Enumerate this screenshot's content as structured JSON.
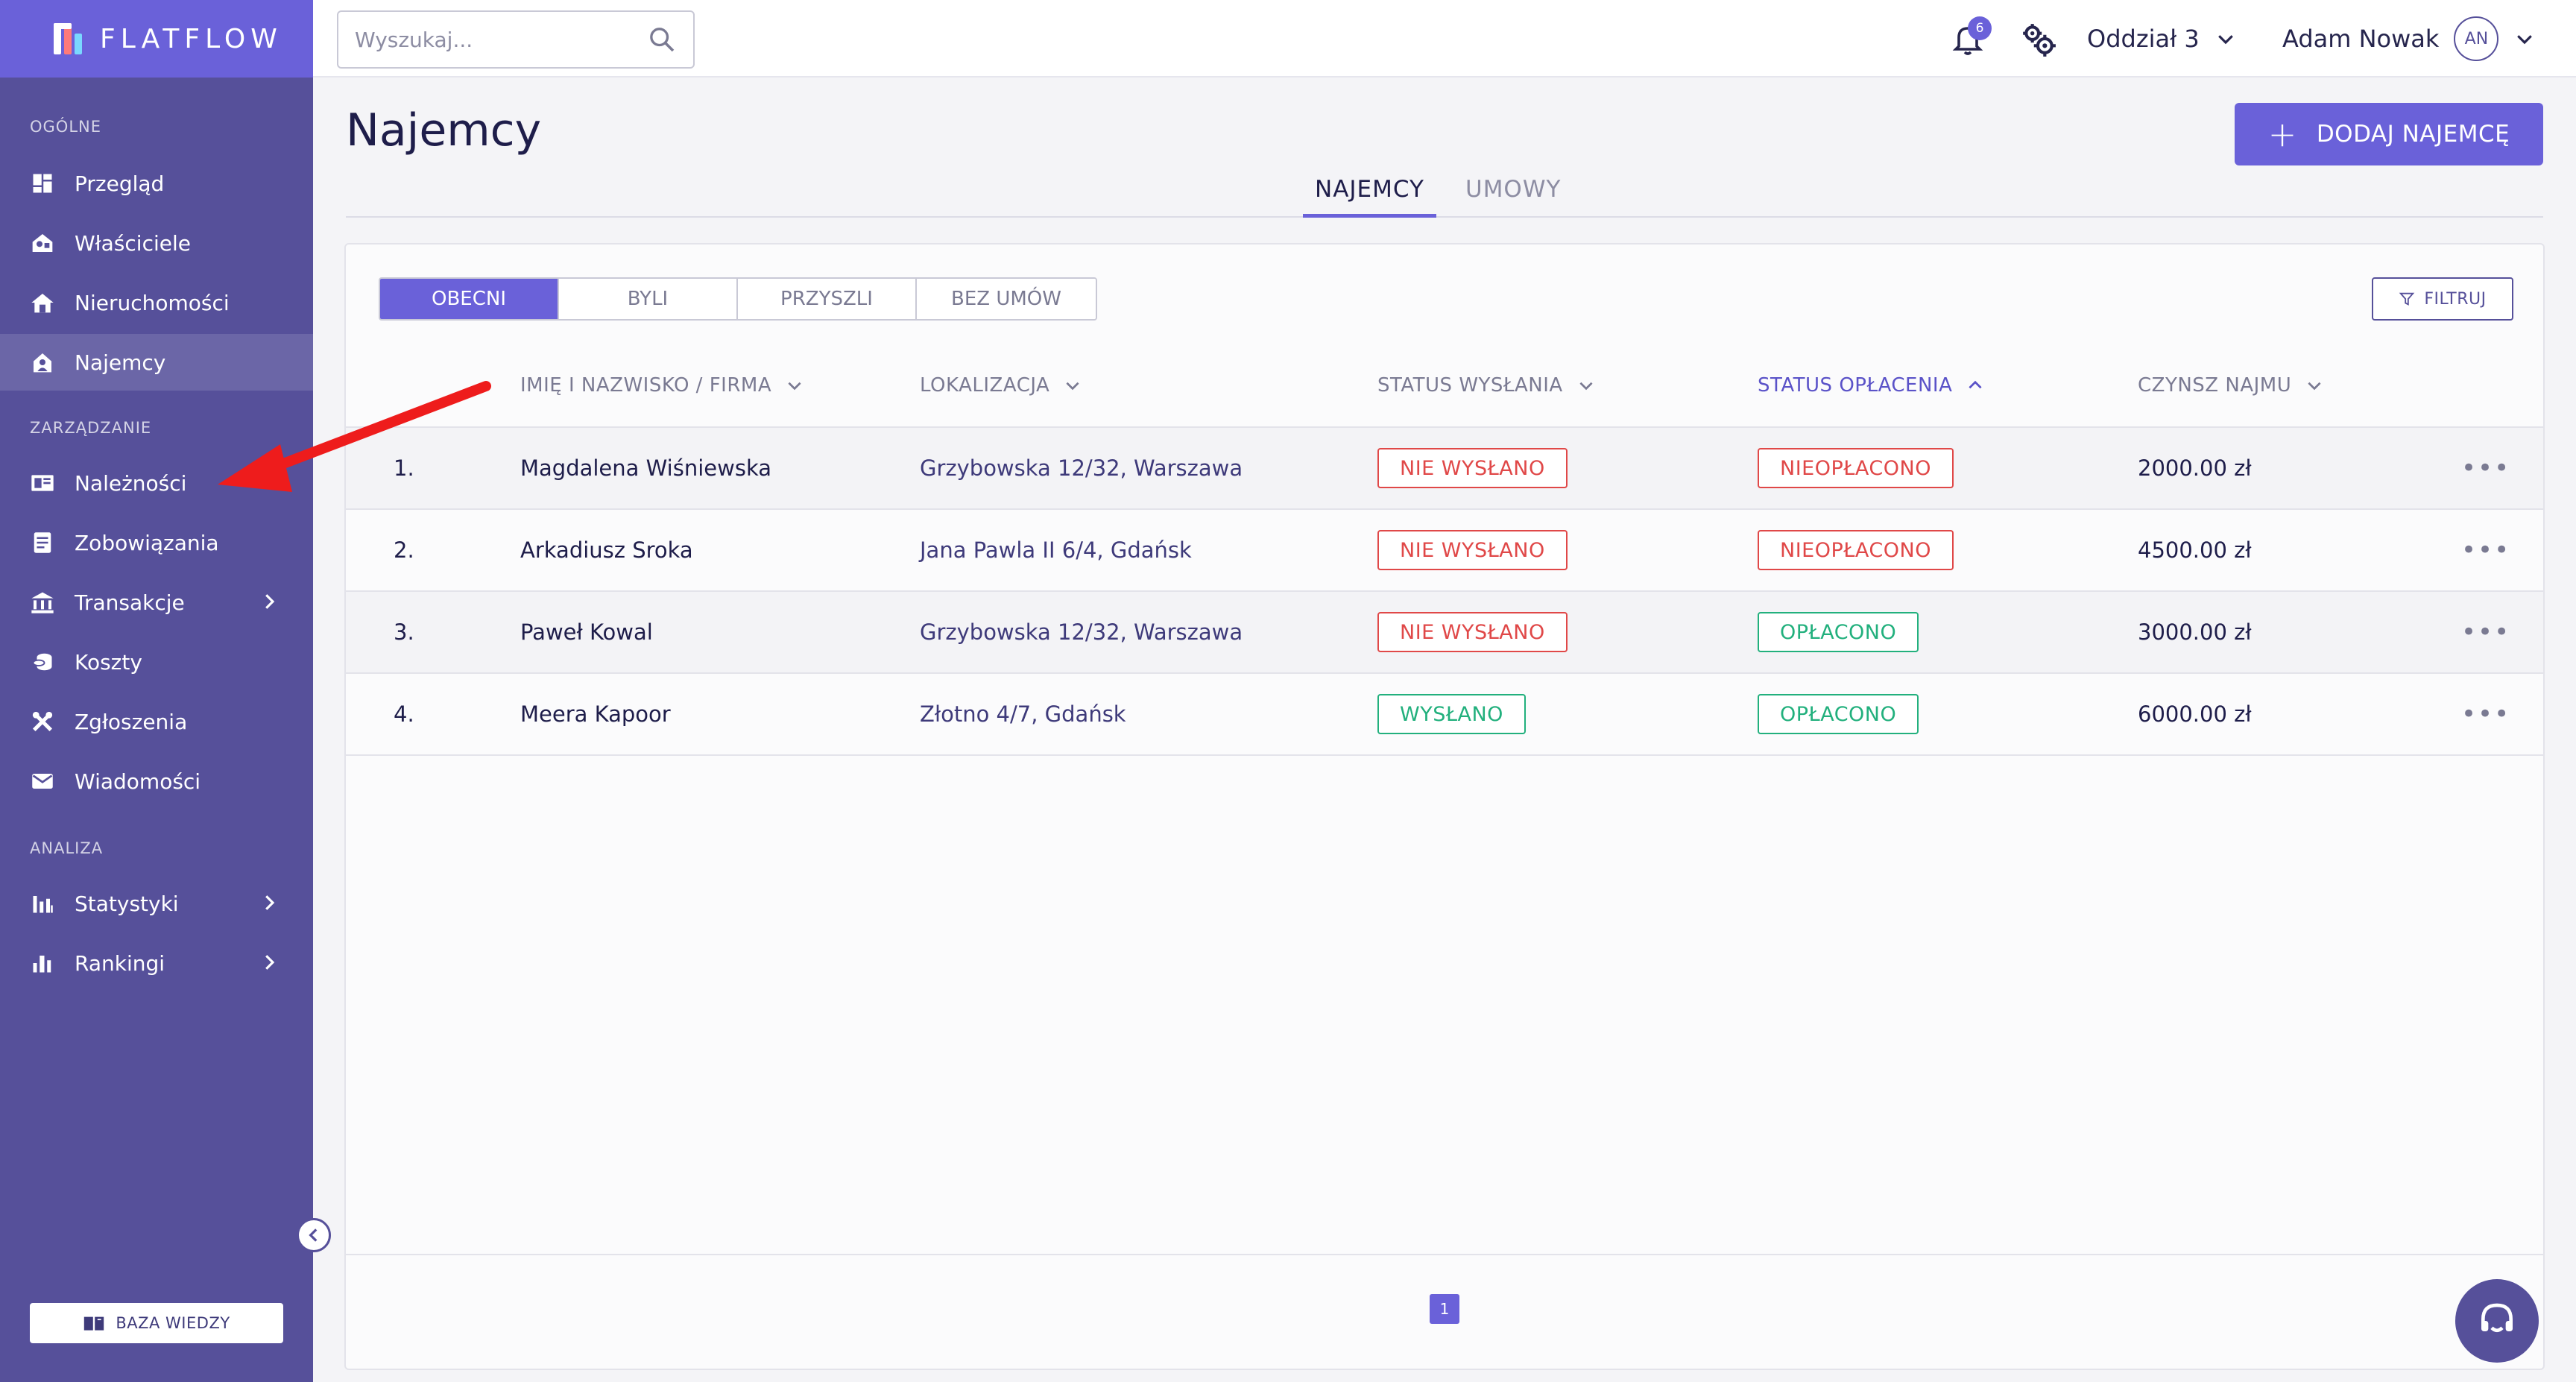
{
  "app": {
    "name": "FLATFLOW"
  },
  "sidebar": {
    "sections": [
      {
        "label": "OGÓLNE"
      },
      {
        "label": "ZARZĄDZANIE"
      },
      {
        "label": "ANALIZA"
      }
    ],
    "items": [
      {
        "label": "Przegląd",
        "icon": "dashboard-icon"
      },
      {
        "label": "Właściciele",
        "icon": "owners-icon"
      },
      {
        "label": "Nieruchomości",
        "icon": "property-icon"
      },
      {
        "label": "Najemcy",
        "icon": "tenant-icon",
        "active": true
      },
      {
        "label": "Należności",
        "icon": "receivables-icon"
      },
      {
        "label": "Zobowiązania",
        "icon": "liabilities-icon"
      },
      {
        "label": "Transakcje",
        "icon": "bank-icon",
        "expandable": true
      },
      {
        "label": "Koszty",
        "icon": "coins-icon"
      },
      {
        "label": "Zgłoszenia",
        "icon": "tools-icon"
      },
      {
        "label": "Wiadomości",
        "icon": "mail-icon"
      },
      {
        "label": "Statystyki",
        "icon": "stats-icon",
        "expandable": true
      },
      {
        "label": "Rankingi",
        "icon": "ranking-icon",
        "expandable": true
      }
    ],
    "knowledge_base": "BAZA WIEDZY"
  },
  "topbar": {
    "search_placeholder": "Wyszukaj...",
    "notifications_count": "6",
    "branch": "Oddział 3",
    "user_name": "Adam Nowak",
    "user_initials": "AN"
  },
  "page": {
    "title": "Najemcy",
    "add_button": "DODAJ NAJEMCĘ",
    "tabs": [
      {
        "label": "NAJEMCY",
        "active": true
      },
      {
        "label": "UMOWY",
        "active": false
      }
    ]
  },
  "filters": {
    "segments": [
      "OBECNI",
      "BYLI",
      "PRZYSZLI",
      "BEZ UMÓW"
    ],
    "active_segment": "OBECNI",
    "filter_button": "FILTRUJ"
  },
  "table": {
    "columns": [
      {
        "label": "IMIĘ I NAZWISKO / FIRMA",
        "sort": "none"
      },
      {
        "label": "LOKALIZACJA",
        "sort": "none"
      },
      {
        "label": "STATUS WYSŁANIA",
        "sort": "none"
      },
      {
        "label": "STATUS OPŁACENIA",
        "sort": "asc"
      },
      {
        "label": "CZYNSZ NAJMU",
        "sort": "none"
      }
    ],
    "rows": [
      {
        "index": "1.",
        "name": "Magdalena Wiśniewska",
        "location": "Grzybowska 12/32, Warszawa",
        "sent_status": "NIE WYSŁANO",
        "sent_ok": false,
        "paid_status": "NIEOPŁACONO",
        "paid_ok": false,
        "rent": "2000.00 zł"
      },
      {
        "index": "2.",
        "name": "Arkadiusz Sroka",
        "location": "Jana Pawla II 6/4, Gdańsk",
        "sent_status": "NIE WYSŁANO",
        "sent_ok": false,
        "paid_status": "NIEOPŁACONO",
        "paid_ok": false,
        "rent": "4500.00 zł"
      },
      {
        "index": "3.",
        "name": "Paweł Kowal",
        "location": "Grzybowska 12/32, Warszawa",
        "sent_status": "NIE WYSŁANO",
        "sent_ok": false,
        "paid_status": "OPŁACONO",
        "paid_ok": true,
        "rent": "3000.00 zł"
      },
      {
        "index": "4.",
        "name": "Meera Kapoor",
        "location": "Złotno 4/7, Gdańsk",
        "sent_status": "WYSŁANO",
        "sent_ok": true,
        "paid_status": "OPŁACONO",
        "paid_ok": true,
        "rent": "6000.00 zł"
      }
    ],
    "row_menu": "•••"
  },
  "pagination": {
    "current_page": "1"
  },
  "colors": {
    "accent": "#6a61d9",
    "sidebar": "#56509a",
    "error": "#e04848",
    "success": "#22b07d",
    "annotation_arrow": "#ee1c1c"
  }
}
